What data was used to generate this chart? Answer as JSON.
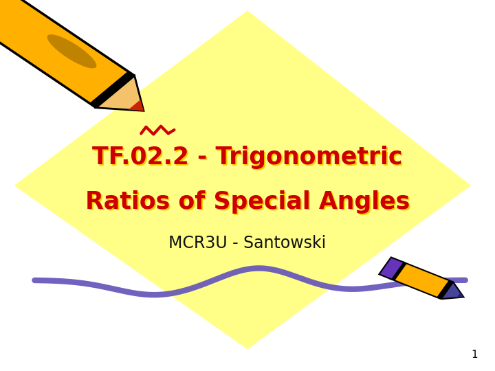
{
  "background_color": "#ffffff",
  "diamond_color": "#ffff88",
  "title_line1": "TF.02.2 - Trigonometric",
  "title_line2": "Ratios of Special Angles",
  "title_color": "#cc0000",
  "title_shadow_color": "#ffcc00",
  "subtitle": "MCR3U - Santowski",
  "subtitle_color": "#111111",
  "page_number": "1",
  "wave_color": "#6655bb"
}
